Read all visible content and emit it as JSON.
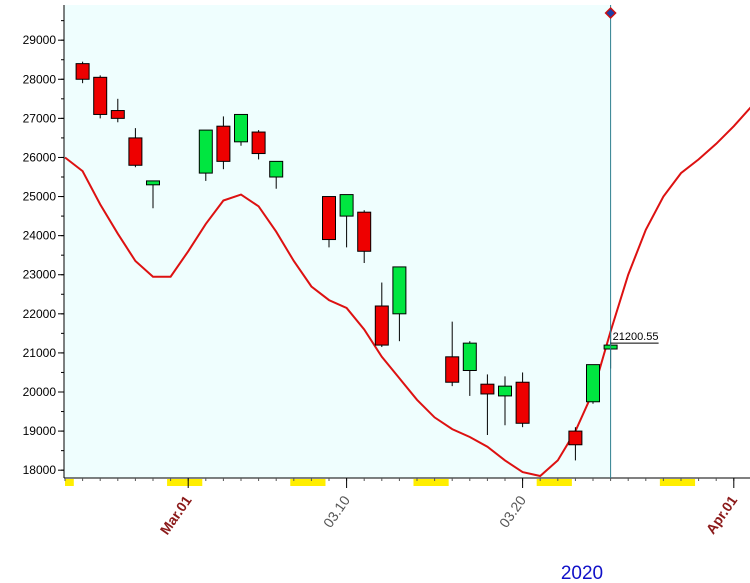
{
  "chart_data": {
    "type": "candlestick",
    "year": "2020",
    "ylim": [
      17800,
      29900
    ],
    "y_ticks": [
      "18000",
      "19000",
      "20000",
      "21000",
      "22000",
      "23000",
      "24000",
      "25000",
      "26000",
      "27000",
      "28000",
      "29000"
    ],
    "x_labels": [
      {
        "text": "Mar.01",
        "day": 7,
        "style": "bold"
      },
      {
        "text": "03.10",
        "day": 16,
        "style": "normal"
      },
      {
        "text": "03.20",
        "day": 26,
        "style": "normal"
      },
      {
        "text": "Apr.01",
        "day": 38,
        "style": "bold"
      }
    ],
    "weekend_markers": [
      [
        0,
        0.5
      ],
      [
        5.8,
        7.8
      ],
      [
        12.8,
        14.8
      ],
      [
        19.8,
        21.8
      ],
      [
        26.8,
        28.8
      ],
      [
        33.8,
        35.8
      ],
      [
        39.8,
        40.5
      ]
    ],
    "shaded_until_day": 31,
    "cursor": {
      "day": 31,
      "value": 21200.55,
      "label": "21200.55"
    },
    "colors": {
      "up": "#00e640",
      "down": "#ee0000",
      "ma": "#dd1111",
      "background": "#effefe",
      "weekend": "#ffee00",
      "cursor_line": "#2f7f8f"
    },
    "candles": [
      {
        "day": 1,
        "open": 28400,
        "high": 28450,
        "low": 27900,
        "close": 28000
      },
      {
        "day": 2,
        "open": 28050,
        "high": 28100,
        "low": 27000,
        "close": 27100
      },
      {
        "day": 3,
        "open": 27200,
        "high": 27500,
        "low": 26900,
        "close": 27000
      },
      {
        "day": 4,
        "open": 26500,
        "high": 26750,
        "low": 25750,
        "close": 25800
      },
      {
        "day": 5,
        "open": 25300,
        "high": 25400,
        "low": 24700,
        "close": 25400
      },
      {
        "day": 8,
        "open": 25600,
        "high": 26700,
        "low": 25400,
        "close": 26700
      },
      {
        "day": 9,
        "open": 26800,
        "high": 27050,
        "low": 25700,
        "close": 25900
      },
      {
        "day": 10,
        "open": 26400,
        "high": 27100,
        "low": 26300,
        "close": 27100
      },
      {
        "day": 11,
        "open": 26650,
        "high": 26700,
        "low": 25950,
        "close": 26100
      },
      {
        "day": 12,
        "open": 25500,
        "high": 25900,
        "low": 25200,
        "close": 25900
      },
      {
        "day": 15,
        "open": 25000,
        "high": 25000,
        "low": 23700,
        "close": 23900
      },
      {
        "day": 16,
        "open": 24500,
        "high": 25050,
        "low": 23700,
        "close": 25050
      },
      {
        "day": 17,
        "open": 24600,
        "high": 24650,
        "low": 23300,
        "close": 23600
      },
      {
        "day": 18,
        "open": 22200,
        "high": 22800,
        "low": 21150,
        "close": 21200
      },
      {
        "day": 19,
        "open": 22000,
        "high": 23200,
        "low": 21300,
        "close": 23200
      },
      {
        "day": 22,
        "open": 20900,
        "high": 21800,
        "low": 20150,
        "close": 20250
      },
      {
        "day": 23,
        "open": 20550,
        "high": 21300,
        "low": 19900,
        "close": 21250
      },
      {
        "day": 24,
        "open": 20200,
        "high": 20450,
        "low": 18900,
        "close": 19950
      },
      {
        "day": 25,
        "open": 19900,
        "high": 20400,
        "low": 19150,
        "close": 20150
      },
      {
        "day": 26,
        "open": 20250,
        "high": 20500,
        "low": 19100,
        "close": 19200
      },
      {
        "day": 29,
        "open": 19000,
        "high": 19100,
        "low": 18250,
        "close": 18650
      },
      {
        "day": 30,
        "open": 19750,
        "high": 20700,
        "low": 19700,
        "close": 20700
      },
      {
        "day": 31,
        "open": 21100,
        "high": 21650,
        "low": 20600,
        "close": 21200
      }
    ],
    "moving_average": [
      {
        "day": 0,
        "value": 26000
      },
      {
        "day": 1,
        "value": 25650
      },
      {
        "day": 2,
        "value": 24800
      },
      {
        "day": 3,
        "value": 24050
      },
      {
        "day": 4,
        "value": 23350
      },
      {
        "day": 5,
        "value": 22950
      },
      {
        "day": 6,
        "value": 22950
      },
      {
        "day": 7,
        "value": 23600
      },
      {
        "day": 8,
        "value": 24300
      },
      {
        "day": 9,
        "value": 24900
      },
      {
        "day": 10,
        "value": 25050
      },
      {
        "day": 11,
        "value": 24750
      },
      {
        "day": 12,
        "value": 24100
      },
      {
        "day": 13,
        "value": 23350
      },
      {
        "day": 14,
        "value": 22700
      },
      {
        "day": 15,
        "value": 22350
      },
      {
        "day": 16,
        "value": 22150
      },
      {
        "day": 17,
        "value": 21600
      },
      {
        "day": 18,
        "value": 20900
      },
      {
        "day": 19,
        "value": 20350
      },
      {
        "day": 20,
        "value": 19800
      },
      {
        "day": 21,
        "value": 19350
      },
      {
        "day": 22,
        "value": 19050
      },
      {
        "day": 23,
        "value": 18850
      },
      {
        "day": 24,
        "value": 18600
      },
      {
        "day": 25,
        "value": 18250
      },
      {
        "day": 26,
        "value": 17950
      },
      {
        "day": 27,
        "value": 17850
      },
      {
        "day": 28,
        "value": 18250
      },
      {
        "day": 29,
        "value": 19000
      },
      {
        "day": 30,
        "value": 20000
      },
      {
        "day": 31,
        "value": 21550
      },
      {
        "day": 32,
        "value": 23000
      },
      {
        "day": 33,
        "value": 24150
      },
      {
        "day": 34,
        "value": 25000
      },
      {
        "day": 35,
        "value": 25600
      },
      {
        "day": 36,
        "value": 25950
      },
      {
        "day": 37,
        "value": 26350
      },
      {
        "day": 38,
        "value": 26800
      },
      {
        "day": 39,
        "value": 27300
      }
    ]
  }
}
